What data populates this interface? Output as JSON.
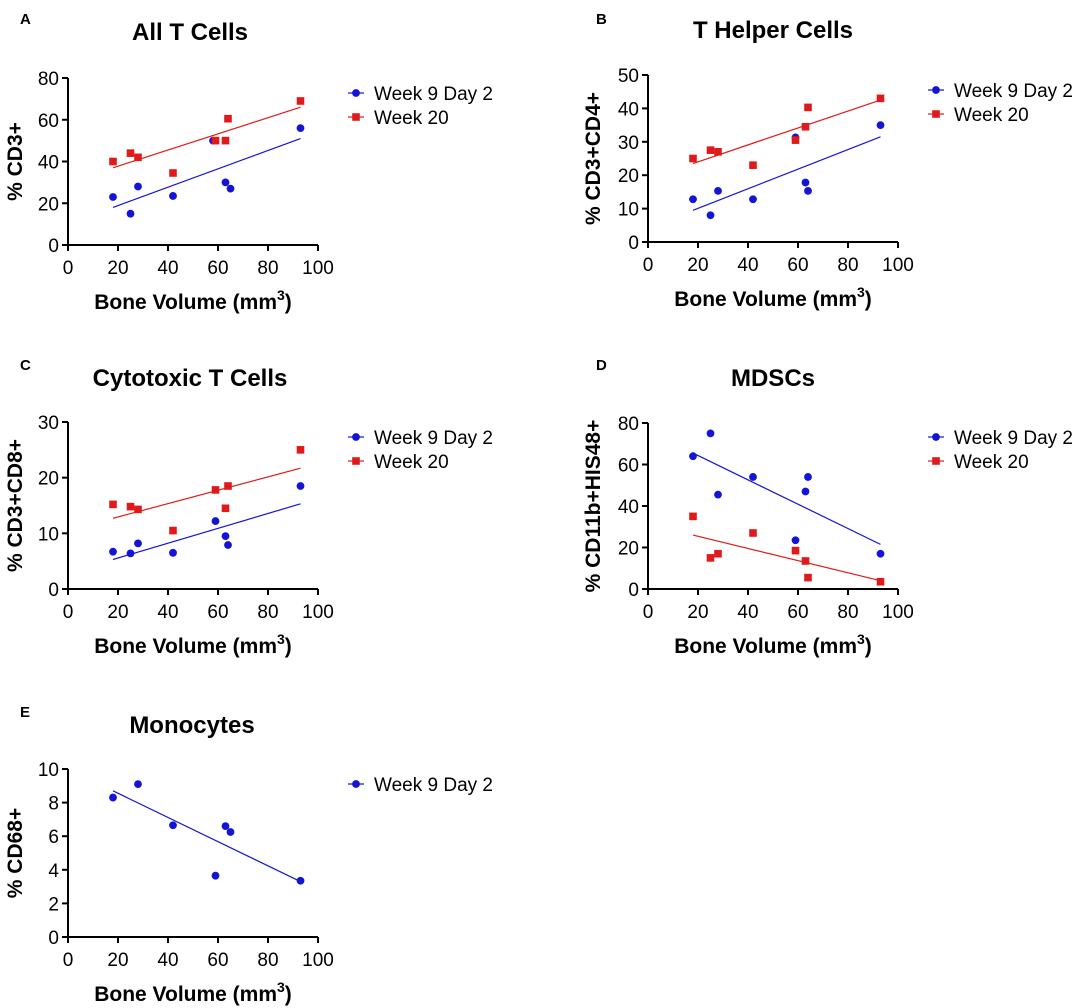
{
  "colors": {
    "series1": "#1414d6",
    "series2": "#e01a1a",
    "axis": "#000000"
  },
  "chart_data": [
    {
      "panel": "A",
      "type": "scatter",
      "title": "All T Cells",
      "xlabel": "Bone Volume (mm",
      "xlabel_sup": "3",
      "xlabel_end": ")",
      "ylabel": "% CD3+",
      "xlim": [
        0,
        100
      ],
      "ylim": [
        0,
        80
      ],
      "xticks": [
        0,
        20,
        40,
        60,
        80,
        100
      ],
      "yticks": [
        0,
        20,
        40,
        60,
        80
      ],
      "series": [
        {
          "name": "Week 9 Day 2",
          "marker": "circle",
          "x": [
            18,
            25,
            28,
            42,
            58,
            63,
            65,
            93
          ],
          "y": [
            23,
            15,
            28,
            23.5,
            50,
            30,
            27,
            56
          ],
          "fit": [
            [
              18,
              18
            ],
            [
              93,
              51
            ]
          ]
        },
        {
          "name": "Week 20",
          "marker": "square",
          "x": [
            18,
            25,
            28,
            42,
            59,
            63,
            64,
            93
          ],
          "y": [
            40,
            44,
            42,
            34.5,
            50,
            50,
            60.5,
            69
          ],
          "fit": [
            [
              18,
              37
            ],
            [
              93,
              66
            ]
          ]
        }
      ]
    },
    {
      "panel": "B",
      "type": "scatter",
      "title": "T Helper Cells",
      "xlabel": "Bone Volume (mm",
      "xlabel_sup": "3",
      "xlabel_end": ")",
      "ylabel": "% CD3+CD4+",
      "xlim": [
        0,
        100
      ],
      "ylim": [
        0,
        50
      ],
      "xticks": [
        0,
        20,
        40,
        60,
        80,
        100
      ],
      "yticks": [
        0,
        10,
        20,
        30,
        40,
        50
      ],
      "series": [
        {
          "name": "Week 9 Day 2",
          "marker": "circle",
          "x": [
            18,
            25,
            28,
            42,
            59,
            63,
            64,
            93
          ],
          "y": [
            12.8,
            8,
            15.3,
            12.8,
            31.3,
            17.8,
            15.3,
            35
          ],
          "fit": [
            [
              18,
              9.5
            ],
            [
              93,
              31.5
            ]
          ]
        },
        {
          "name": "Week 20",
          "marker": "square",
          "x": [
            18,
            25,
            28,
            42,
            59,
            63,
            64,
            93
          ],
          "y": [
            25,
            27.5,
            27,
            23,
            30.5,
            34.5,
            40.3,
            43
          ],
          "fit": [
            [
              18,
              23.5
            ],
            [
              93,
              42.5
            ]
          ]
        }
      ]
    },
    {
      "panel": "C",
      "type": "scatter",
      "title": "Cytotoxic T Cells",
      "xlabel": "Bone Volume (mm",
      "xlabel_sup": "3",
      "xlabel_end": ")",
      "ylabel": "% CD3+CD8+",
      "xlim": [
        0,
        100
      ],
      "ylim": [
        0,
        30
      ],
      "xticks": [
        0,
        20,
        40,
        60,
        80,
        100
      ],
      "yticks": [
        0,
        10,
        20,
        30
      ],
      "series": [
        {
          "name": "Week 9 Day 2",
          "marker": "circle",
          "x": [
            18,
            25,
            28,
            42,
            59,
            63,
            64,
            93
          ],
          "y": [
            6.7,
            6.4,
            8.2,
            6.5,
            12.2,
            9.5,
            7.9,
            18.5
          ],
          "fit": [
            [
              18,
              5.3
            ],
            [
              93,
              15.3
            ]
          ]
        },
        {
          "name": "Week 20",
          "marker": "square",
          "x": [
            18,
            25,
            28,
            42,
            59,
            63,
            64,
            93
          ],
          "y": [
            15.2,
            14.8,
            14.3,
            10.5,
            17.8,
            14.5,
            18.5,
            25
          ],
          "fit": [
            [
              18,
              12.7
            ],
            [
              93,
              21.7
            ]
          ]
        }
      ]
    },
    {
      "panel": "D",
      "type": "scatter",
      "title": "MDSCs",
      "xlabel": "Bone Volume (mm",
      "xlabel_sup": "3",
      "xlabel_end": ")",
      "ylabel": "% CD11b+HIS48+",
      "xlim": [
        0,
        100
      ],
      "ylim": [
        0,
        80
      ],
      "xticks": [
        0,
        20,
        40,
        60,
        80,
        100
      ],
      "yticks": [
        0,
        20,
        40,
        60,
        80
      ],
      "series": [
        {
          "name": "Week 9 Day 2",
          "marker": "circle",
          "x": [
            18,
            25,
            28,
            42,
            59,
            63,
            64,
            93
          ],
          "y": [
            64,
            75,
            45.5,
            54,
            23.5,
            47,
            54,
            17
          ],
          "fit": [
            [
              18,
              65.5
            ],
            [
              93,
              21.5
            ]
          ]
        },
        {
          "name": "Week 20",
          "marker": "square",
          "x": [
            18,
            25,
            28,
            42,
            59,
            63,
            64,
            93
          ],
          "y": [
            35,
            15,
            17,
            27,
            18.5,
            13.5,
            5.5,
            3.5
          ],
          "fit": [
            [
              18,
              26
            ],
            [
              93,
              4
            ]
          ]
        }
      ]
    },
    {
      "panel": "E",
      "type": "scatter",
      "title": "Monocytes",
      "xlabel": "Bone Volume (mm",
      "xlabel_sup": "3",
      "xlabel_end": ")",
      "ylabel": "% CD68+",
      "xlim": [
        0,
        100
      ],
      "ylim": [
        0,
        10
      ],
      "xticks": [
        0,
        20,
        40,
        60,
        80,
        100
      ],
      "yticks": [
        0,
        2,
        4,
        6,
        8,
        10
      ],
      "series": [
        {
          "name": "Week 9 Day 2",
          "marker": "circle",
          "x": [
            18,
            28,
            42,
            59,
            63,
            65,
            93
          ],
          "y": [
            8.3,
            9.1,
            6.65,
            3.65,
            6.6,
            6.25,
            3.35
          ],
          "fit": [
            [
              18,
              8.7
            ],
            [
              93,
              3.3
            ]
          ]
        }
      ]
    }
  ]
}
